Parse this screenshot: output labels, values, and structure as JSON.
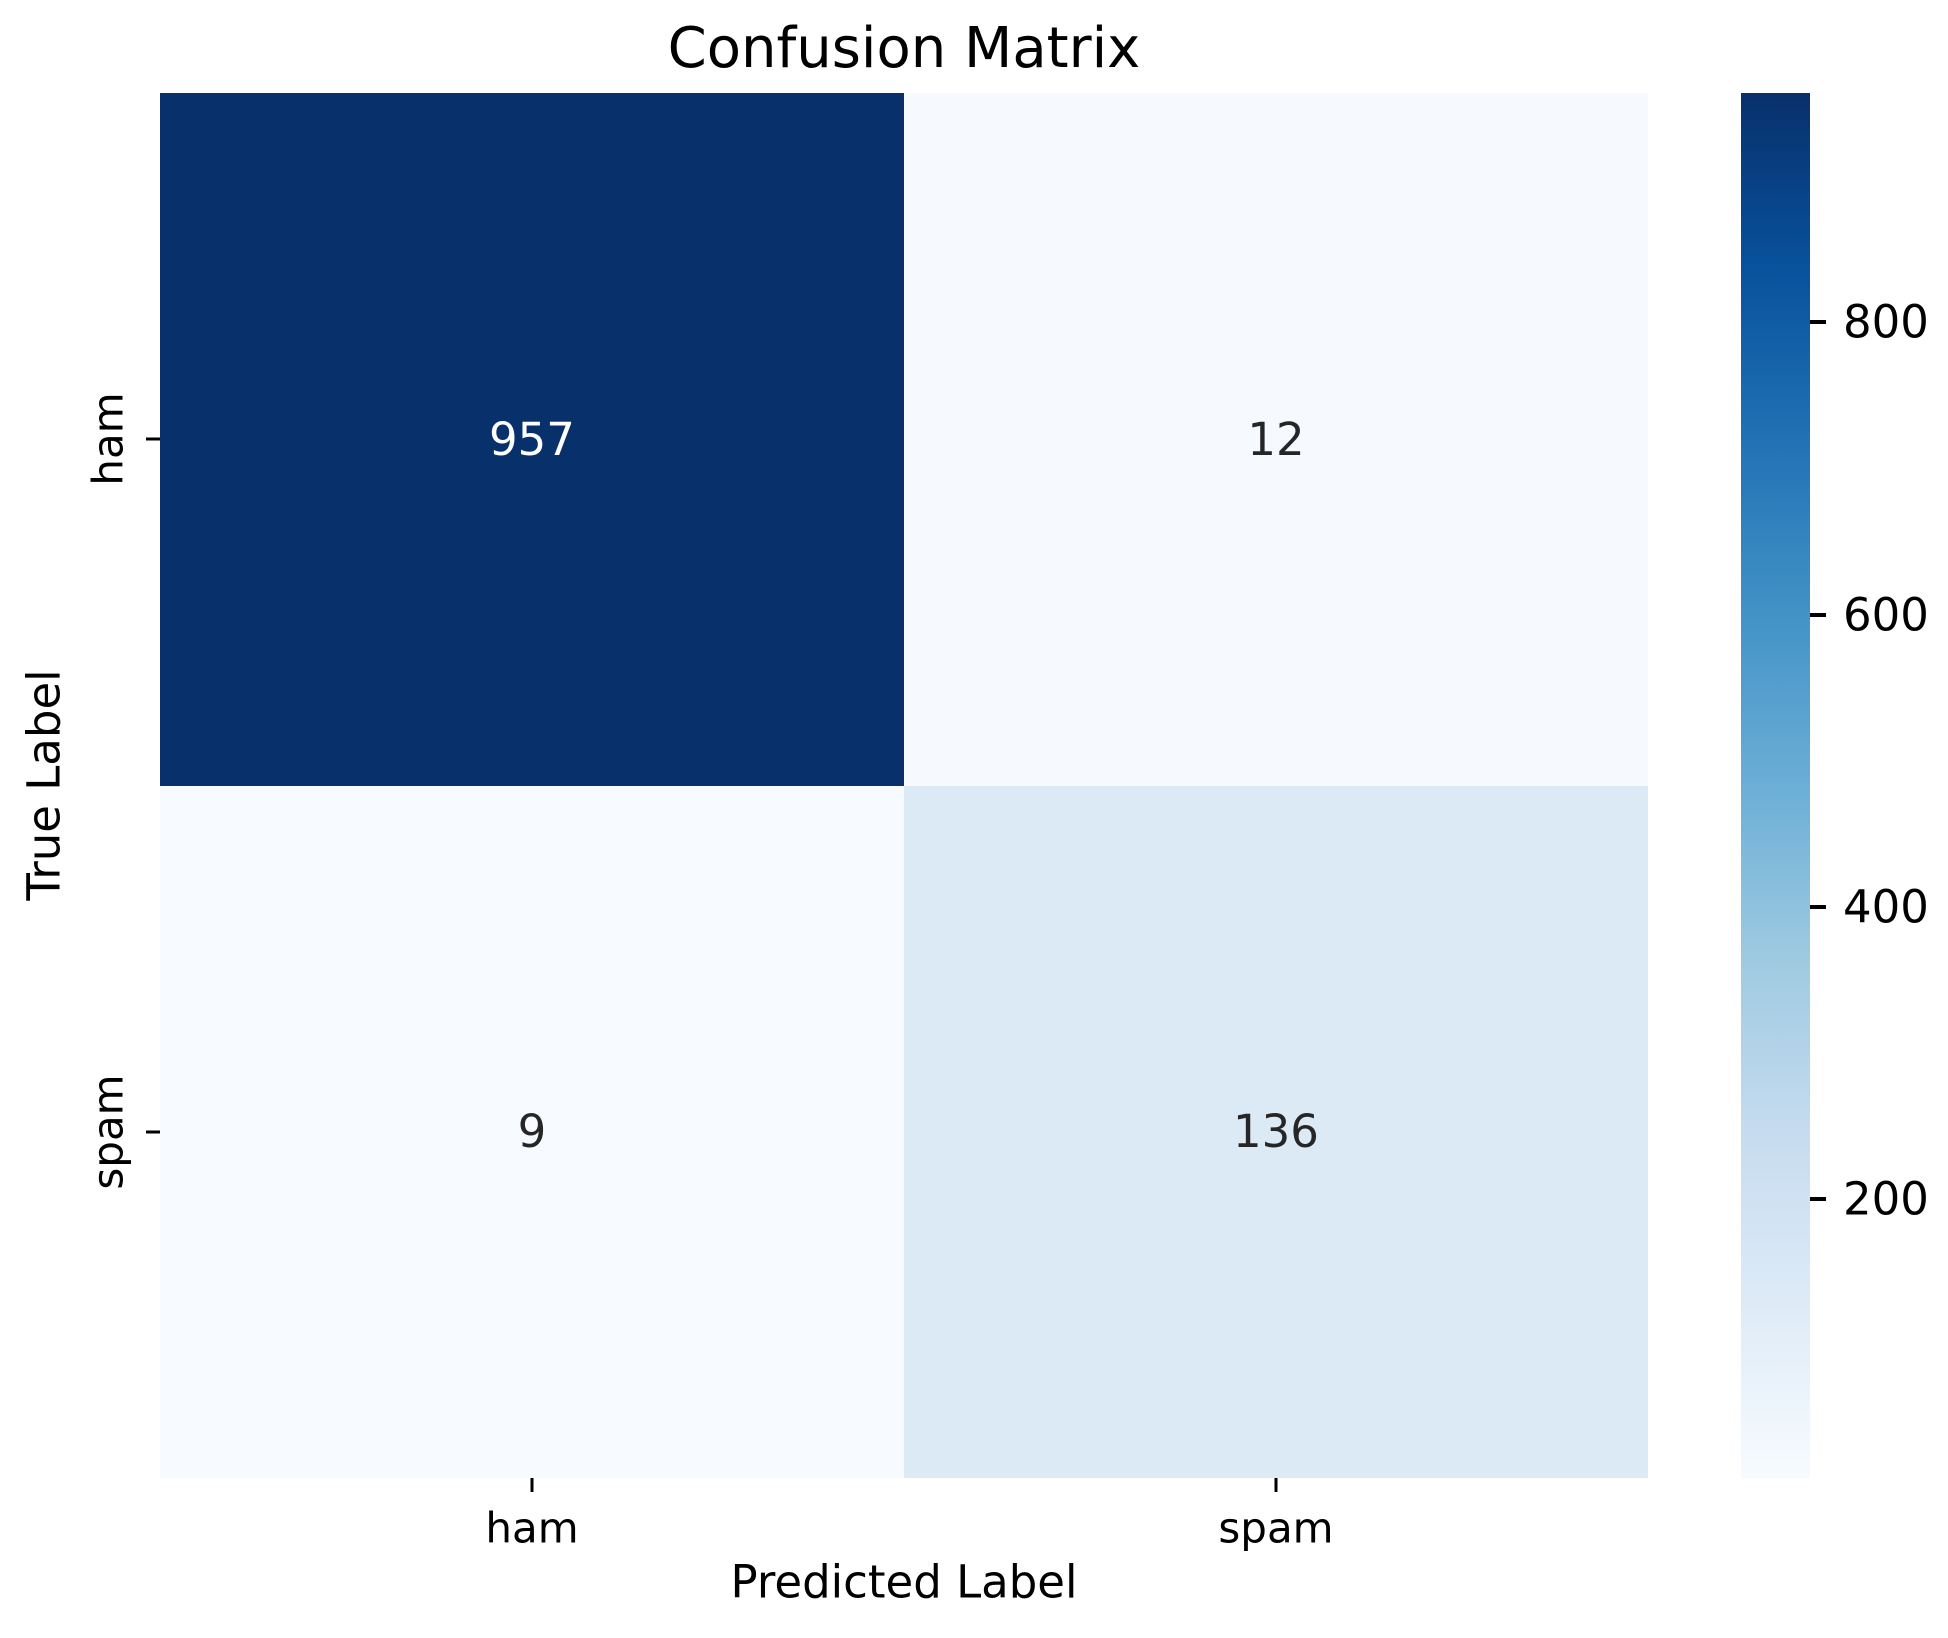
{
  "chart_data": {
    "type": "heatmap",
    "title": "Confusion Matrix",
    "xlabel": "Predicted Label",
    "ylabel": "True Label",
    "x_categories": [
      "ham",
      "spam"
    ],
    "y_categories": [
      "ham",
      "spam"
    ],
    "matrix": [
      [
        957,
        12
      ],
      [
        9,
        136
      ]
    ],
    "vmin": 9,
    "vmax": 957,
    "colormap": "Blues",
    "legend_position": "right-colorbar",
    "grid": false,
    "colorbar_ticks": [
      200,
      400,
      600,
      800
    ],
    "cell_colors": [
      [
        "#08306b",
        "#f6fafe"
      ],
      [
        "#f7fafe",
        "#dceaf6"
      ]
    ],
    "cell_text_colors": [
      [
        "#ffffff",
        "#262626"
      ],
      [
        "#262626",
        "#262626"
      ]
    ],
    "colormap_stops": [
      "#f7fbff",
      "#deebf7",
      "#c6dbef",
      "#9ecae1",
      "#6baed6",
      "#4292c6",
      "#2171b5",
      "#08519c",
      "#08306b"
    ],
    "tick_color": "#000000"
  }
}
